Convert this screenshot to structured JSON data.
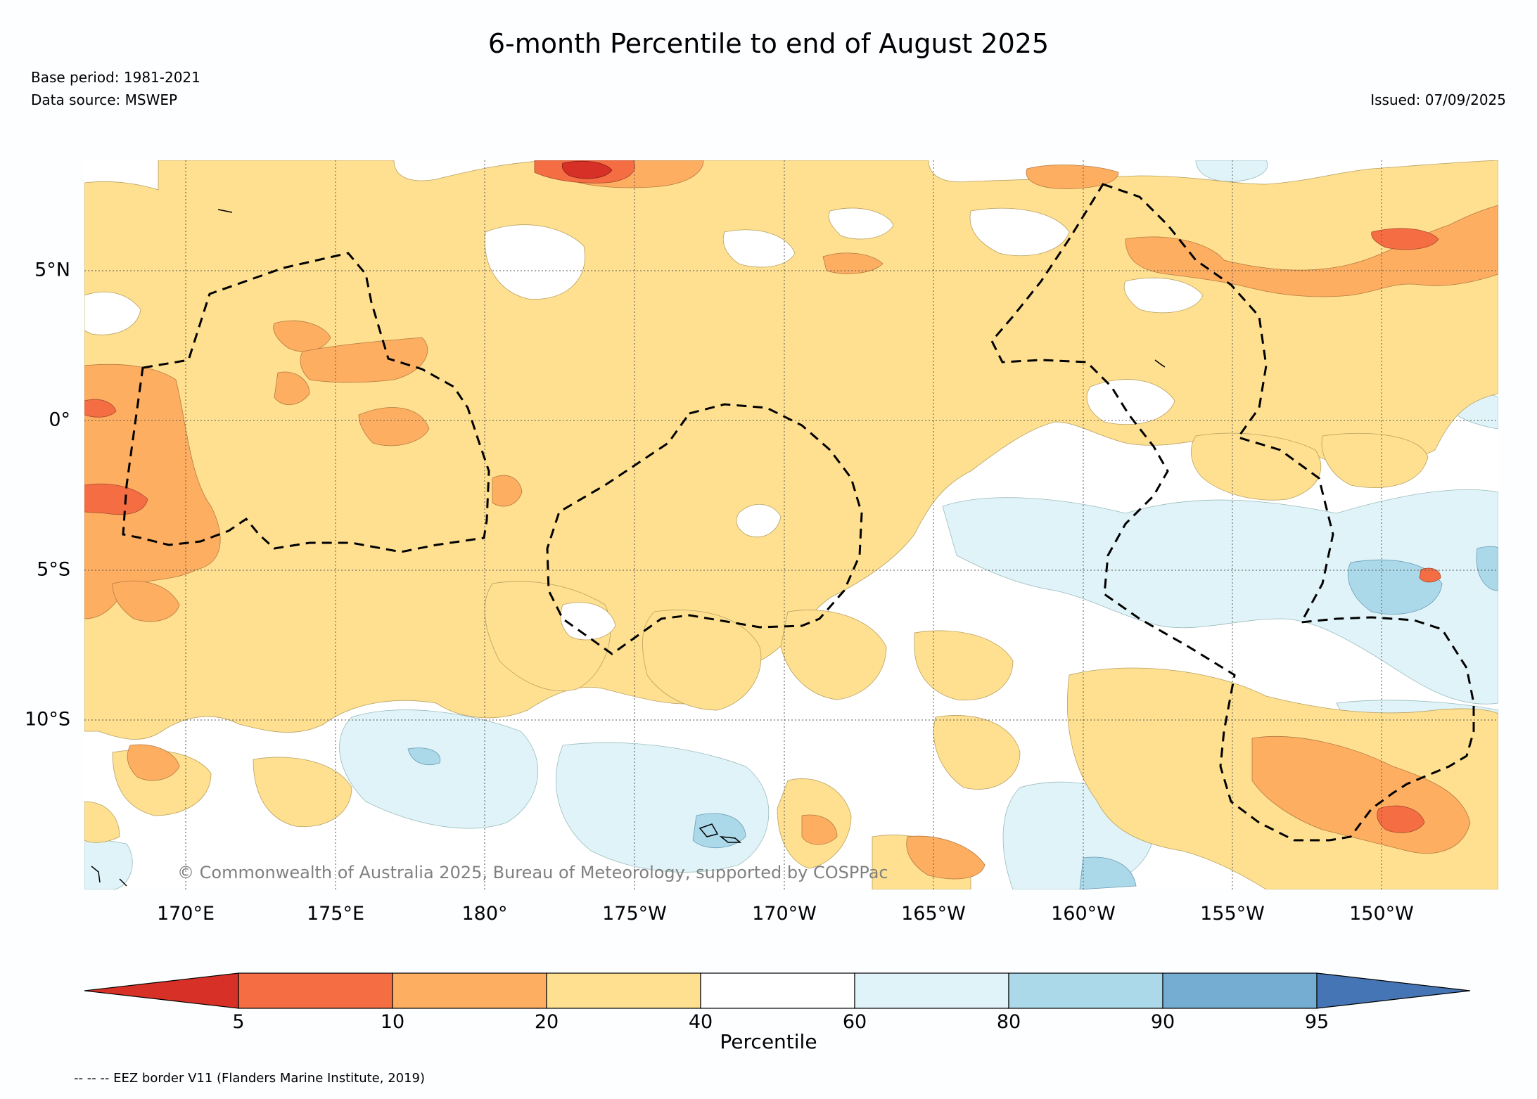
{
  "header": {
    "title": "6-month Percentile to end of August 2025",
    "base_period": "Base period: 1981-2021",
    "data_source": "Data source: MSWEP",
    "issued": "Issued: 07/09/2025"
  },
  "map": {
    "lat_labels": [
      "5°N",
      "0°",
      "5°S",
      "10°S"
    ],
    "lon_labels": [
      "170°E",
      "175°E",
      "180°",
      "175°W",
      "170°W",
      "165°W",
      "160°W",
      "155°W",
      "150°W"
    ],
    "copyright": "© Commonwealth of Australia 2025, Bureau of Meteorology, supported by COSPPac"
  },
  "colorbar": {
    "title": "Percentile",
    "tick_labels": [
      "5",
      "10",
      "20",
      "40",
      "60",
      "80",
      "90",
      "95"
    ],
    "colors": [
      "#d73027",
      "#f46d43",
      "#fdae61",
      "#fee090",
      "#ffffff",
      "#e0f3f8",
      "#abd9e9",
      "#74add1",
      "#4575b4"
    ]
  },
  "legend": {
    "eez_note": "-- -- -- EEZ border V11 (Flanders Marine Institute, 2019)"
  }
}
